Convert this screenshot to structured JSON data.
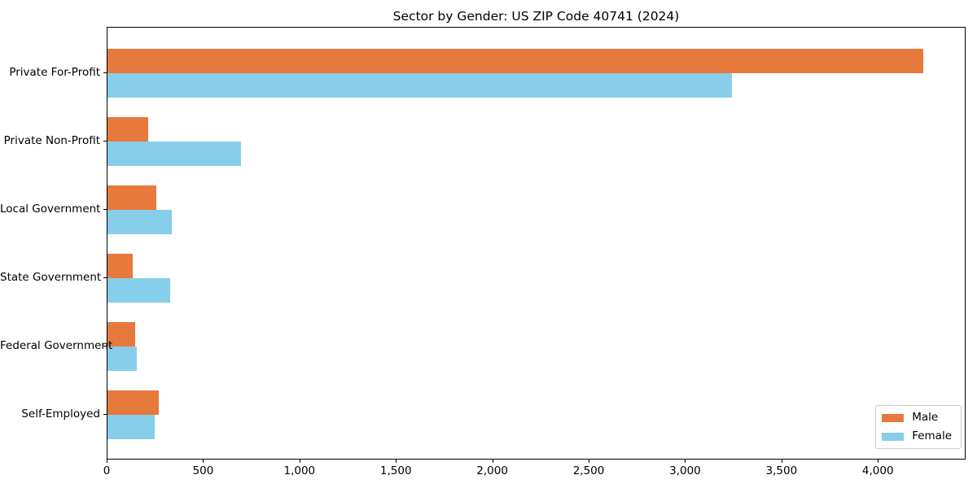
{
  "title": "Sector by Gender: US ZIP Code 40741 (2024)",
  "chart_data": {
    "type": "bar",
    "orientation": "horizontal",
    "title": "Sector by Gender: US ZIP Code 40741 (2024)",
    "xlabel": "",
    "ylabel": "",
    "categories": [
      "Private For-Profit",
      "Private Non-Profit",
      "Local Government",
      "State Government",
      "Federal Government",
      "Self-Employed"
    ],
    "series": [
      {
        "name": "Male",
        "color": "#E8793C",
        "values": [
          4240,
          210,
          255,
          130,
          142,
          265
        ]
      },
      {
        "name": "Female",
        "color": "#87CEEB",
        "values": [
          3245,
          695,
          335,
          325,
          152,
          245
        ]
      }
    ],
    "xlim": [
      0,
      4455
    ],
    "xticks": [
      0,
      500,
      1000,
      1500,
      2000,
      2500,
      3000,
      3500,
      4000
    ],
    "xtick_labels": [
      "0",
      "500",
      "1,000",
      "1,500",
      "2,000",
      "2,500",
      "3,000",
      "3,500",
      "4,000"
    ],
    "grid": false,
    "legend_position": "lower right"
  }
}
